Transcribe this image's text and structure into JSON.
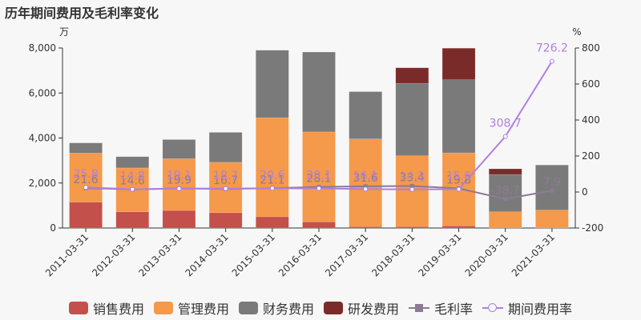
{
  "title": "历年期间费用及毛利率变化",
  "colors": {
    "sales": "#c4504b",
    "mgmt": "#f5994a",
    "finance": "#7a7a7a",
    "rd": "#7b2a2a",
    "gross": "#8c7b93",
    "period": "#b07fe0"
  },
  "chart_data": {
    "type": "bar",
    "title": "历年期间费用及毛利率变化",
    "left_unit": "万",
    "right_unit": "%",
    "categories": [
      "2011-03-31",
      "2012-03-31",
      "2013-03-31",
      "2014-03-31",
      "2015-03-31",
      "2016-03-31",
      "2017-03-31",
      "2018-03-31",
      "2019-03-31",
      "2020-03-31",
      "2021-03-31"
    ],
    "ylim_left": [
      0,
      8000
    ],
    "yticks_left": [
      0,
      2000,
      4000,
      6000,
      8000
    ],
    "ytick_labels_left": [
      "0",
      "2,000",
      "4,000",
      "6,000",
      "8,000"
    ],
    "ylim_right": [
      -200,
      800
    ],
    "yticks_right": [
      -200,
      0,
      200,
      400,
      600,
      800
    ],
    "ytick_labels_right": [
      "-200",
      "0",
      "200",
      "400",
      "600",
      "800"
    ],
    "series": [
      {
        "name": "销售费用",
        "type": "bar",
        "values": [
          1150,
          720,
          780,
          680,
          500,
          270,
          60,
          60,
          90,
          0,
          0
        ]
      },
      {
        "name": "管理费用",
        "type": "bar",
        "values": [
          2180,
          1950,
          2300,
          2240,
          4400,
          4000,
          3900,
          3150,
          3250,
          720,
          800
        ]
      },
      {
        "name": "财务费用",
        "type": "bar",
        "values": [
          450,
          500,
          850,
          1330,
          3000,
          3550,
          2100,
          3220,
          3250,
          1660,
          2000
        ]
      },
      {
        "name": "研发费用",
        "type": "bar",
        "values": [
          0,
          0,
          0,
          0,
          0,
          0,
          0,
          690,
          1400,
          250,
          0
        ]
      },
      {
        "name": "毛利率",
        "type": "line",
        "axis": "right",
        "values": [
          21.6,
          14.6,
          19.9,
          16.7,
          21.1,
          28.1,
          31.6,
          33.4,
          19.8,
          -38.7,
          7.9
        ],
        "labels": [
          "21.6",
          "14.6",
          "19.9",
          "16.7",
          "21.1",
          "28.1",
          "31.6",
          "33.4",
          "19.8",
          "-38.7",
          "7.9"
        ]
      },
      {
        "name": "期间费用率",
        "type": "line",
        "axis": "right",
        "values": [
          25.8,
          14.8,
          19.1,
          18.7,
          20.6,
          20.1,
          16.1,
          14.3,
          15.6,
          308.7,
          726.2
        ],
        "labels": [
          "25.8",
          "14.8",
          "19.1",
          "18.7",
          "20.6",
          "20.1",
          "16.1",
          "14.3",
          "15.6",
          "308.7",
          "726.2"
        ]
      }
    ],
    "grid": false,
    "legend_position": "bottom"
  }
}
